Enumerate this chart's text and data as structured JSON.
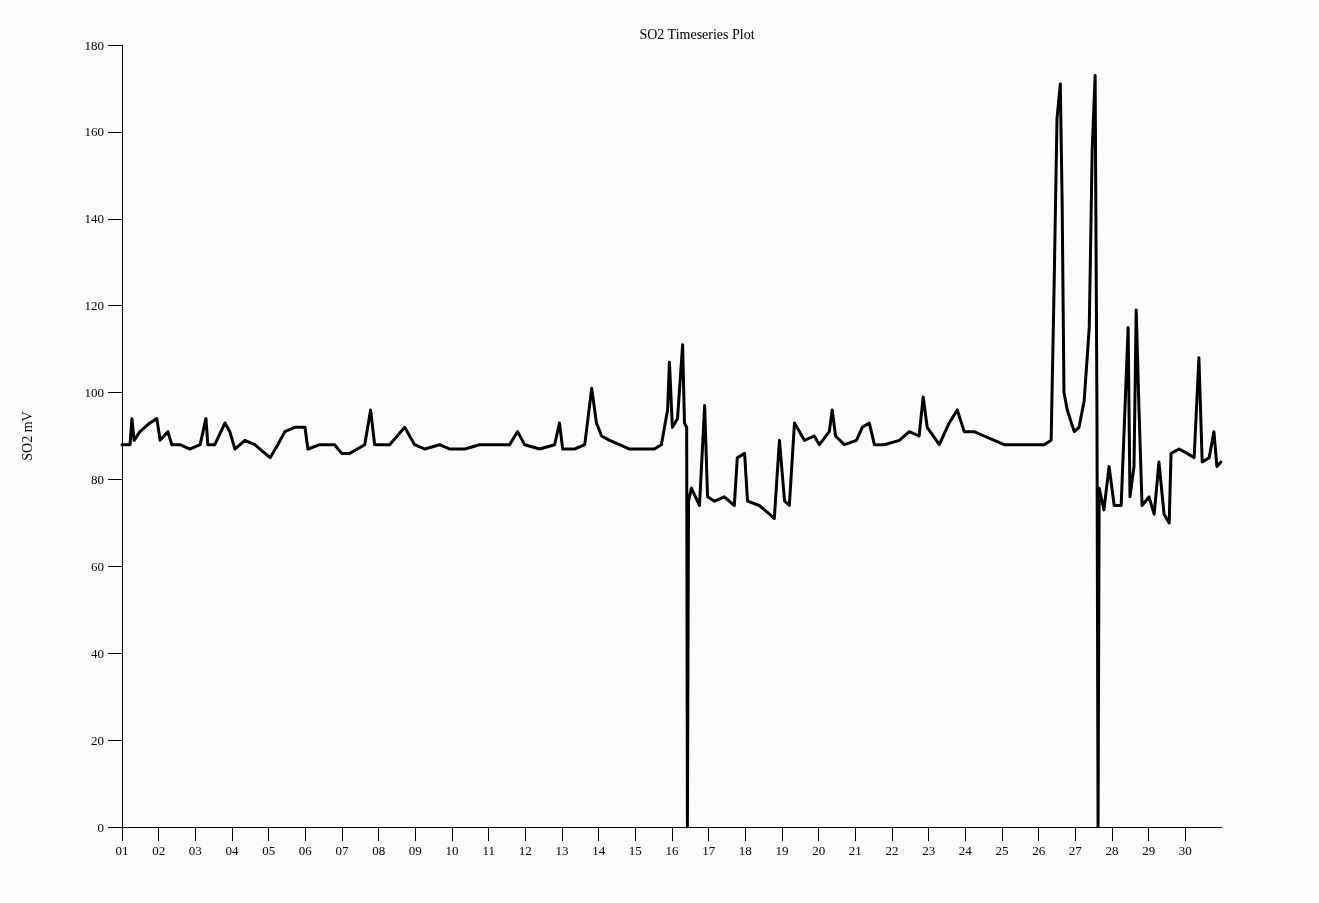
{
  "chart_data": {
    "type": "line",
    "title": "SO2 Timeseries Plot",
    "ylabel": "SO2 mV",
    "xlim": [
      1,
      31
    ],
    "ylim": [
      0,
      180
    ],
    "xticks": [
      {
        "value": 1,
        "label": "01"
      },
      {
        "value": 2,
        "label": "02"
      },
      {
        "value": 3,
        "label": "03"
      },
      {
        "value": 4,
        "label": "04"
      },
      {
        "value": 5,
        "label": "05"
      },
      {
        "value": 6,
        "label": "06"
      },
      {
        "value": 7,
        "label": "07"
      },
      {
        "value": 8,
        "label": "08"
      },
      {
        "value": 9,
        "label": "09"
      },
      {
        "value": 10,
        "label": "10"
      },
      {
        "value": 11,
        "label": "11"
      },
      {
        "value": 12,
        "label": "12"
      },
      {
        "value": 13,
        "label": "13"
      },
      {
        "value": 14,
        "label": "14"
      },
      {
        "value": 15,
        "label": "15"
      },
      {
        "value": 16,
        "label": "16"
      },
      {
        "value": 17,
        "label": "17"
      },
      {
        "value": 18,
        "label": "18"
      },
      {
        "value": 19,
        "label": "19"
      },
      {
        "value": 20,
        "label": "20"
      },
      {
        "value": 21,
        "label": "21"
      },
      {
        "value": 22,
        "label": "22"
      },
      {
        "value": 23,
        "label": "23"
      },
      {
        "value": 24,
        "label": "24"
      },
      {
        "value": 25,
        "label": "25"
      },
      {
        "value": 26,
        "label": "26"
      },
      {
        "value": 27,
        "label": "27"
      },
      {
        "value": 28,
        "label": "28"
      },
      {
        "value": 29,
        "label": "29"
      },
      {
        "value": 30,
        "label": "30"
      }
    ],
    "yticks": [
      0,
      20,
      40,
      60,
      80,
      100,
      120,
      140,
      160,
      180
    ],
    "grid": false,
    "marker": "none",
    "line_style": "solid",
    "series": [
      {
        "color": "#000000",
        "x": [
          1.0,
          1.22,
          1.27,
          1.33,
          1.49,
          1.76,
          1.95,
          2.04,
          2.25,
          2.36,
          2.58,
          2.85,
          3.13,
          3.29,
          3.34,
          3.53,
          3.81,
          3.94,
          4.08,
          4.35,
          4.62,
          4.9,
          5.04,
          5.25,
          5.44,
          5.71,
          5.99,
          6.07,
          6.4,
          6.8,
          6.99,
          7.21,
          7.62,
          7.78,
          7.89,
          8.3,
          8.71,
          8.98,
          9.26,
          9.66,
          9.94,
          10.35,
          10.75,
          11.03,
          11.3,
          11.57,
          11.79,
          11.98,
          12.39,
          12.8,
          12.93,
          13.02,
          13.34,
          13.62,
          13.81,
          13.94,
          14.08,
          14.3,
          14.57,
          14.84,
          15.25,
          15.52,
          15.71,
          15.88,
          15.93,
          16.01,
          16.15,
          16.29,
          16.34,
          16.4,
          16.42,
          16.45,
          16.53,
          16.75,
          16.89,
          16.97,
          17.16,
          17.43,
          17.7,
          17.78,
          17.98,
          18.06,
          18.38,
          18.66,
          18.79,
          18.93,
          19.07,
          19.2,
          19.34,
          19.61,
          19.88,
          20.02,
          20.29,
          20.37,
          20.46,
          20.7,
          21.03,
          21.19,
          21.38,
          21.52,
          21.79,
          22.2,
          22.47,
          22.74,
          22.85,
          22.96,
          23.29,
          23.56,
          23.78,
          23.97,
          24.24,
          24.51,
          24.79,
          25.06,
          25.47,
          25.88,
          26.15,
          26.34,
          26.42,
          26.5,
          26.59,
          26.64,
          26.69,
          26.78,
          26.97,
          27.1,
          27.24,
          27.38,
          27.46,
          27.54,
          27.59,
          27.62,
          27.65,
          27.78,
          27.92,
          28.06,
          28.25,
          28.44,
          28.49,
          28.6,
          28.66,
          28.74,
          28.82,
          29.01,
          29.15,
          29.28,
          29.42,
          29.56,
          29.61,
          29.83,
          30.05,
          30.24,
          30.37,
          30.46,
          30.65,
          30.78,
          30.86,
          30.97
        ],
        "values": [
          88,
          88,
          94,
          89,
          91,
          93,
          94,
          89,
          91,
          88,
          88,
          87,
          88,
          94,
          88,
          88,
          93,
          91,
          87,
          89,
          88,
          86,
          85,
          88,
          91,
          92,
          92,
          87,
          88,
          88,
          86,
          86,
          88,
          96,
          88,
          88,
          92,
          88,
          87,
          88,
          87,
          87,
          88,
          88,
          88,
          88,
          91,
          88,
          87,
          88,
          93,
          87,
          87,
          88,
          101,
          93,
          90,
          89,
          88,
          87,
          87,
          87,
          88,
          96,
          107,
          92,
          94,
          111,
          93,
          92,
          0,
          75,
          78,
          74,
          97,
          76,
          75,
          76,
          74,
          85,
          86,
          75,
          74,
          72,
          71,
          89,
          75,
          74,
          93,
          89,
          90,
          88,
          91,
          96,
          90,
          88,
          89,
          92,
          93,
          88,
          88,
          89,
          91,
          90,
          99,
          92,
          88,
          93,
          96,
          91,
          91,
          90,
          89,
          88,
          88,
          88,
          88,
          89,
          124,
          163,
          171,
          144,
          100,
          96,
          91,
          92,
          98,
          115,
          156,
          173,
          95,
          0,
          78,
          73,
          83,
          74,
          74,
          115,
          76,
          83,
          119,
          95,
          74,
          76,
          72,
          84,
          72,
          70,
          86,
          87,
          86,
          85,
          108,
          84,
          85,
          91,
          83,
          84
        ]
      }
    ]
  }
}
